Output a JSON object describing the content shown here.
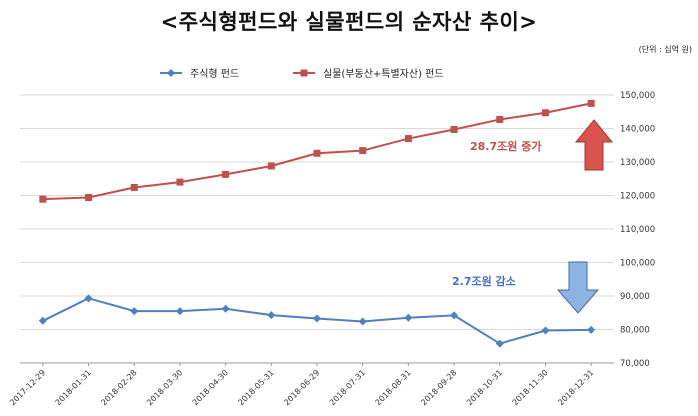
{
  "title": "<주식형펀드와 실물펀드의 순자산 추이>",
  "unit": "(단위 : 십억 원)",
  "chart_data": {
    "type": "line",
    "x": [
      "2017-12-29",
      "2018-01-31",
      "2018-02-28",
      "2018-03-30",
      "2018-04-30",
      "2018-05-31",
      "2018-06-29",
      "2018-07-31",
      "2018-08-31",
      "2018-09-28",
      "2018-10-31",
      "2018-11-30",
      "2018-12-31"
    ],
    "series": [
      {
        "name": "주식형 펀드",
        "color": "#4f81bd",
        "marker": "diamond",
        "values": [
          82600,
          89300,
          85500,
          85500,
          86200,
          84300,
          83300,
          82400,
          83500,
          84200,
          75800,
          79700,
          79900
        ]
      },
      {
        "name": "실물(부동산+특별자산) 펀드",
        "color": "#c0504d",
        "marker": "square",
        "values": [
          118900,
          119400,
          122400,
          124000,
          126300,
          128800,
          132600,
          133400,
          137000,
          139700,
          142700,
          144700,
          147500
        ]
      }
    ],
    "ylim": [
      70000,
      150000
    ],
    "yticks": [
      70000,
      80000,
      90000,
      100000,
      110000,
      120000,
      130000,
      140000,
      150000
    ],
    "ytick_labels": [
      "70,000",
      "80,000",
      "90,000",
      "100,000",
      "110,000",
      "120,000",
      "130,000",
      "140,000",
      "150,000"
    ],
    "y_axis_side": "right",
    "grid": true,
    "legend": "top",
    "annotations": [
      {
        "text": "28.7조원 증가",
        "color": "#c0504d",
        "arrow": "up"
      },
      {
        "text": "2.7조원 감소",
        "color": "#4472c4",
        "arrow": "down"
      }
    ]
  }
}
